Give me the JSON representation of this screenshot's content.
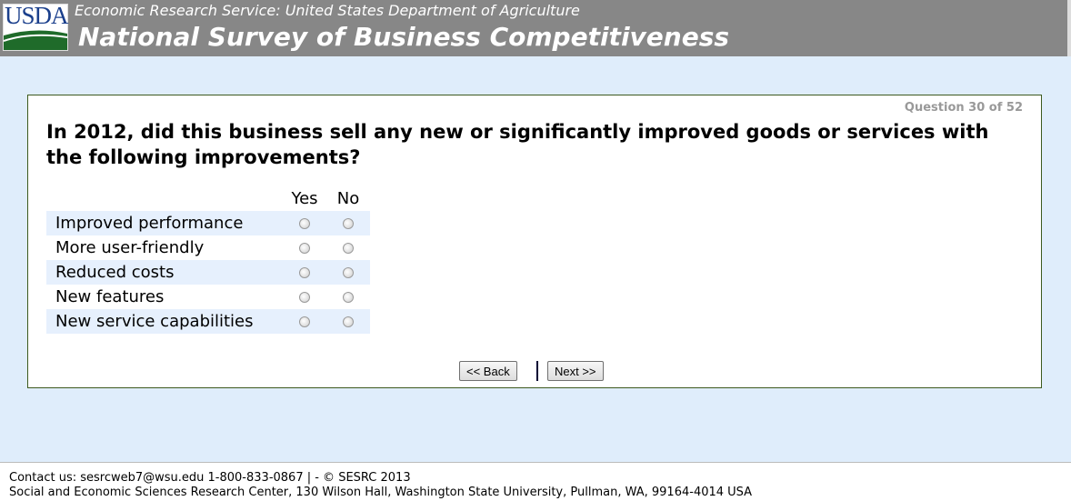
{
  "header": {
    "logo_text": "USDA",
    "subtitle": "Economic Research Service: United States Department of Agriculture",
    "title": "National Survey of Business Competitiveness"
  },
  "question": {
    "counter": "Question 30 of 52",
    "text": "In 2012, did this business sell any new or significantly improved goods or services with the following improvements?",
    "columns": [
      "Yes",
      "No"
    ],
    "rows": [
      {
        "label": "Improved performance"
      },
      {
        "label": "More user-friendly"
      },
      {
        "label": "Reduced costs"
      },
      {
        "label": "New features"
      },
      {
        "label": "New service capabilities"
      }
    ]
  },
  "nav": {
    "back": "<< Back",
    "next": "Next >>"
  },
  "footer": {
    "line1": "Contact us: sesrcweb7@wsu.edu 1-800-833-0867 | - © SESRC 2013",
    "line2": "Social and Economic Sciences Research Center, 130 Wilson Hall, Washington State University, Pullman, WA, 99164-4014 USA"
  }
}
